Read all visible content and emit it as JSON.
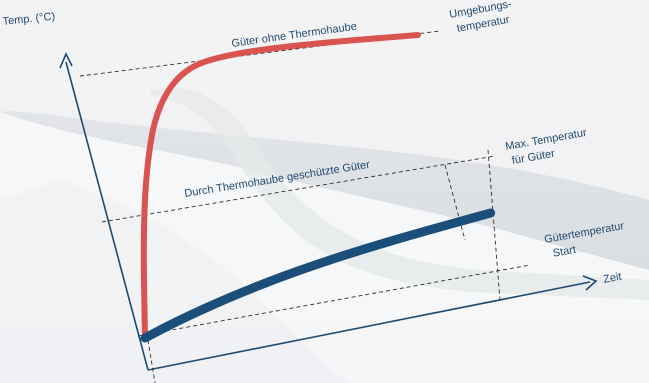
{
  "chart_data": {
    "type": "line",
    "ylabel": "Temp. (°C)",
    "xlabel": "Zeit",
    "series": [
      {
        "name": "Güter ohne Thermohaube",
        "color": "#d9534f",
        "x": [
          0,
          0.02,
          0.05,
          0.1,
          0.2,
          0.35,
          0.6,
          1.0
        ],
        "y": [
          0,
          0.35,
          0.6,
          0.8,
          0.93,
          0.97,
          0.99,
          1.0
        ]
      },
      {
        "name": "Durch Thermohaube geschützte Güter",
        "color": "#1b4f7a",
        "x": [
          0,
          0.1,
          0.25,
          0.45,
          0.7,
          1.0
        ],
        "y": [
          0,
          0.12,
          0.27,
          0.43,
          0.58,
          0.72
        ]
      }
    ],
    "annotations": {
      "ambient": "Umgebungs-\ntemperatur",
      "max_temp": "Max. Temperatur\nfür Güter",
      "start_temp": "Gütertemperatur\nStart"
    },
    "grid": false
  }
}
